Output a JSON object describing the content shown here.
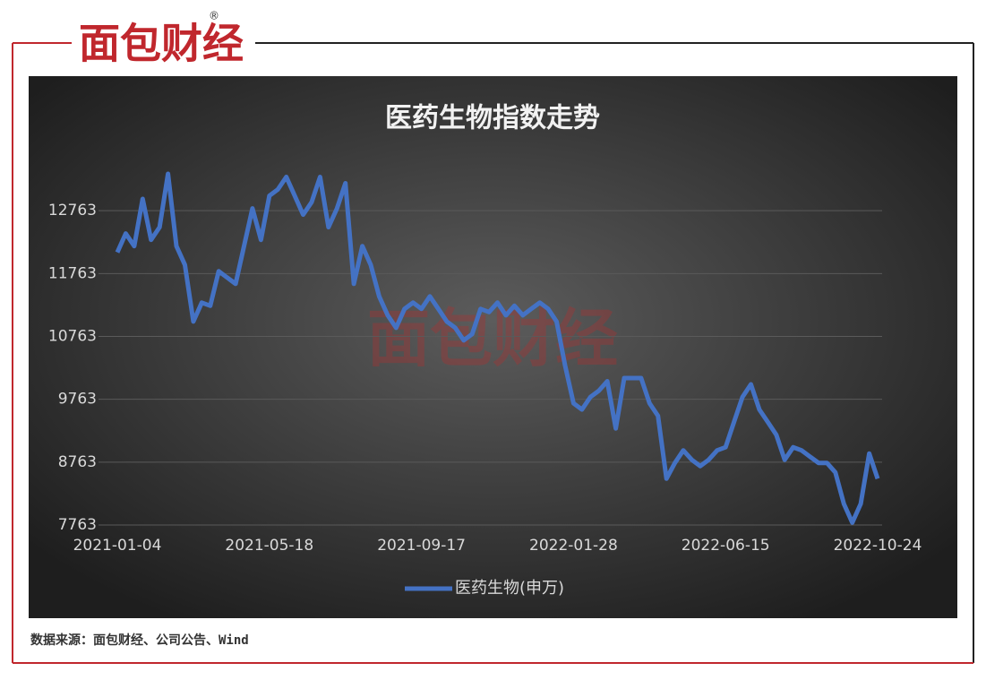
{
  "logo": "面包财经",
  "logo_mark": "®",
  "watermark": "面包财经",
  "footer": "数据来源：面包财经、公司公告、Wind",
  "chart_data": {
    "type": "line",
    "title": "医药生物指数走势",
    "categories": [
      "2021-01-04",
      null,
      null,
      null,
      null,
      null,
      null,
      null,
      null,
      null,
      null,
      null,
      null,
      null,
      null,
      null,
      null,
      null,
      "2021-05-18",
      null,
      null,
      null,
      null,
      null,
      null,
      null,
      null,
      null,
      null,
      null,
      null,
      null,
      null,
      null,
      null,
      null,
      "2021-09-17",
      null,
      null,
      null,
      null,
      null,
      null,
      null,
      null,
      null,
      null,
      null,
      null,
      null,
      null,
      null,
      null,
      null,
      "2022-01-28",
      null,
      null,
      null,
      null,
      null,
      null,
      null,
      null,
      null,
      null,
      null,
      null,
      null,
      null,
      null,
      null,
      null,
      "2022-06-15",
      null,
      null,
      null,
      null,
      null,
      null,
      null,
      null,
      null,
      null,
      null,
      null,
      null,
      null,
      null,
      null,
      null,
      "2022-10-24"
    ],
    "series": [
      {
        "name": "医药生物(申万)",
        "color": "#4472c4",
        "values": [
          12100,
          12400,
          12200,
          12950,
          12300,
          12500,
          13350,
          12200,
          11900,
          11000,
          11300,
          11250,
          11800,
          11700,
          11600,
          12200,
          12800,
          12300,
          13000,
          13100,
          13300,
          13000,
          12700,
          12900,
          13300,
          12500,
          12800,
          13200,
          11600,
          12200,
          11900,
          11400,
          11100,
          10900,
          11200,
          11300,
          11200,
          11400,
          11200,
          11000,
          10900,
          10700,
          10800,
          11200,
          11150,
          11300,
          11100,
          11250,
          11100,
          11200,
          11300,
          11200,
          11000,
          10300,
          9700,
          9600,
          9800,
          9900,
          10050,
          9300,
          10100,
          10100,
          10100,
          9700,
          9500,
          8500,
          8750,
          8950,
          8800,
          8700,
          8800,
          8950,
          9000,
          9400,
          9800,
          10000,
          9600,
          9400,
          9200,
          8800,
          9000,
          8950,
          8850,
          8750,
          8750,
          8600,
          8100,
          7800,
          8100,
          8900,
          8500
        ]
      }
    ],
    "ylim": [
      7763,
      13763
    ],
    "yticks": [
      7763,
      8763,
      9763,
      10763,
      11763,
      12763
    ],
    "grid": true,
    "legend": "bottom"
  }
}
